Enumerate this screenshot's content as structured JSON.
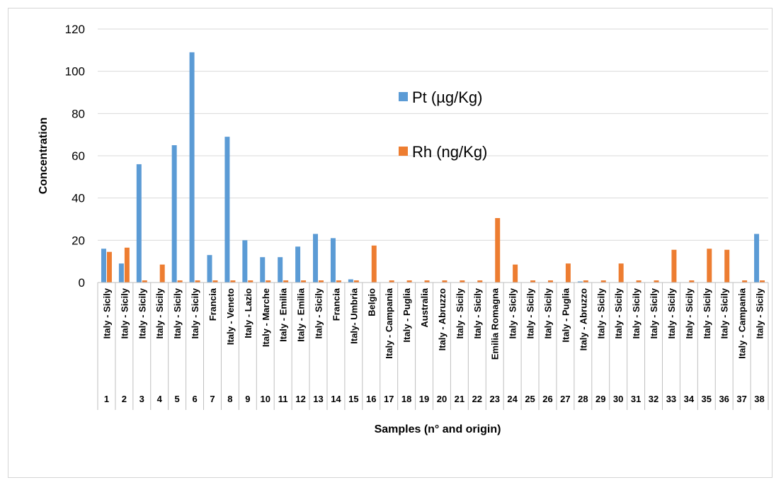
{
  "chart_data": {
    "type": "bar",
    "xlabel": "Samples (n° and origin)",
    "ylabel": "Concentration",
    "ylim": [
      0,
      120
    ],
    "yticks": [
      0,
      20,
      40,
      60,
      80,
      100,
      120
    ],
    "grid": true,
    "legend_position": "upper-center-right",
    "categories": [
      "1",
      "2",
      "3",
      "4",
      "5",
      "6",
      "7",
      "8",
      "9",
      "10",
      "11",
      "12",
      "13",
      "14",
      "15",
      "16",
      "17",
      "18",
      "19",
      "20",
      "21",
      "22",
      "23",
      "24",
      "25",
      "26",
      "27",
      "28",
      "29",
      "30",
      "31",
      "32",
      "33",
      "34",
      "35",
      "36",
      "37",
      "38"
    ],
    "origins": [
      "Italy - Sicily",
      "Italy - Sicily",
      "Italy - Sicily",
      "Italy - Sicily",
      "Italy - Sicily",
      "Italy - Sicily",
      "Francia",
      "Italy - Veneto",
      "Italy - Lazio",
      "Italy - Marche",
      "Italy - Emilia",
      "Italy - Emilia",
      "Italy - Sicily",
      "Francia",
      "Italy- Umbria",
      "Belgio",
      "Italy - Campania",
      "Italy - Puglia",
      "Australia",
      "Italy - Abruzzo",
      "Italy - Sicily",
      "Italy - Sicily",
      "Emilia Romagna",
      "Italy - Sicily",
      "Italy - Sicily",
      "Italy - Sicily",
      "Italy - Puglia",
      "Italy - Abruzzo",
      "Italy - Sicily",
      "Italy - Sicily",
      "Italy - Sicily",
      "Italy - Sicily",
      "Italy - Sicily",
      "Italy - Sicily",
      "Italy - Sicily",
      "Italy - Sicily",
      "Italy - Campania",
      "Italy - Sicily"
    ],
    "series": [
      {
        "name": "Pt (µg/Kg)",
        "color": "#5B9BD5",
        "values": [
          16,
          9,
          56,
          0,
          65,
          109,
          13,
          69,
          20,
          12,
          12,
          17,
          23,
          21,
          1.5,
          0,
          0,
          0,
          0,
          0,
          0,
          0,
          0,
          0,
          0,
          0,
          0,
          0.5,
          0,
          0,
          0,
          0,
          0,
          0,
          0,
          0,
          0,
          23
        ]
      },
      {
        "name": "Rh (ng/Kg)",
        "color": "#ED7D31",
        "values": [
          14.5,
          16.5,
          1,
          8.5,
          1,
          1,
          1,
          1,
          1,
          1,
          1,
          1,
          1,
          1,
          1,
          17.5,
          1,
          1,
          1,
          1,
          1,
          1,
          30.5,
          8.5,
          1,
          1,
          9,
          1,
          1,
          9,
          1,
          1,
          15.5,
          1,
          16,
          15.5,
          1,
          1
        ]
      }
    ]
  }
}
